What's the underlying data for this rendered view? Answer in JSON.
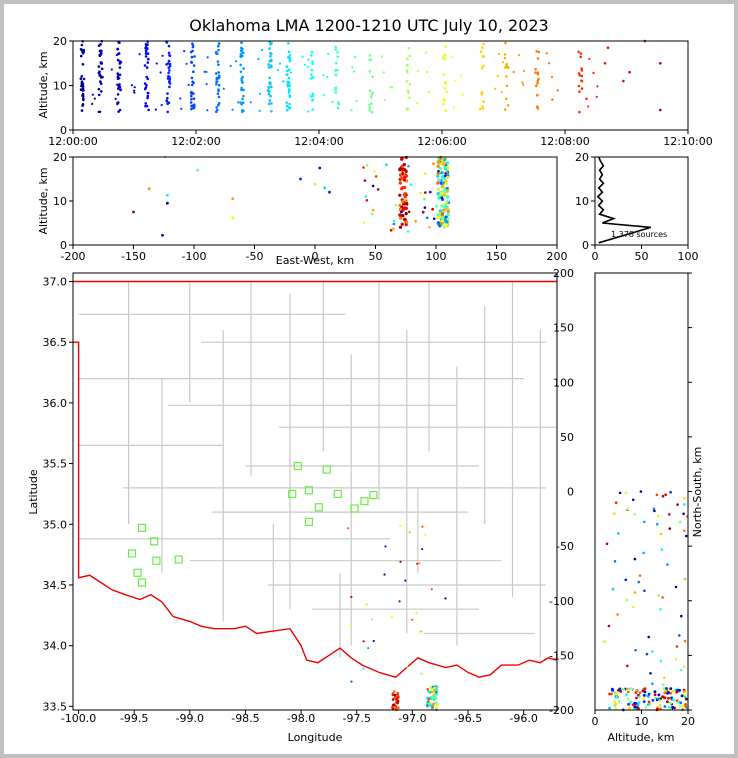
{
  "title": "Oklahoma LMA 1200-1210 UTC July 10, 2023",
  "chart_data": [
    {
      "type": "scatter",
      "panel": "altitude-vs-time",
      "ylabel": "Altitude, km",
      "ylim": [
        0,
        20
      ],
      "y_ticks": [
        "0",
        "10",
        "20"
      ],
      "x_ticks": [
        "12:00:00",
        "12:02:00",
        "12:04:00",
        "12:06:00",
        "12:08:00",
        "12:10:00"
      ],
      "xlim_minutes": [
        0,
        10
      ],
      "color_by": "time",
      "clusters_minutes": [
        0.15,
        0.45,
        0.75,
        1.2,
        1.55,
        1.95,
        2.35,
        2.75,
        3.2,
        3.5,
        3.9,
        4.3,
        4.85,
        5.45,
        6.05,
        6.65,
        7.05,
        7.55,
        8.25
      ]
    },
    {
      "type": "scatter",
      "panel": "altitude-vs-east-west",
      "xlabel": "East-West, km",
      "ylabel": "Altitude, km",
      "xlim": [
        -200,
        200
      ],
      "ylim": [
        0,
        20
      ],
      "x_ticks": [
        "-200",
        "-150",
        "-100",
        "-50",
        "0",
        "50",
        "100",
        "150",
        "200"
      ],
      "y_ticks": [
        "0",
        "10",
        "20"
      ],
      "clusters_x_km": [
        73,
        106
      ]
    },
    {
      "type": "line",
      "panel": "source-histogram",
      "annotation": "1,378 sources",
      "xlim": [
        0,
        100
      ],
      "ylim": [
        0,
        20
      ],
      "x_ticks": [
        "0",
        "50",
        "100"
      ],
      "y_ticks": [
        "0",
        "10",
        "20"
      ],
      "profile": [
        [
          4,
          0.5
        ],
        [
          60,
          4
        ],
        [
          8,
          5
        ],
        [
          20,
          6
        ],
        [
          5,
          7
        ],
        [
          9,
          8
        ],
        [
          4,
          9
        ],
        [
          8,
          10
        ],
        [
          3,
          11
        ],
        [
          8,
          12
        ],
        [
          4,
          13
        ],
        [
          9,
          14
        ],
        [
          5,
          15
        ],
        [
          8,
          16
        ],
        [
          5,
          17
        ],
        [
          9,
          18
        ],
        [
          6,
          19
        ],
        [
          4,
          20
        ]
      ]
    },
    {
      "type": "scatter",
      "panel": "plan-view",
      "xlabel": "Longitude",
      "ylabel": "Latitude",
      "xlim": [
        -100.05,
        -95.7
      ],
      "ylim": [
        33.47,
        37.07
      ],
      "x_ticks": [
        "-100.0",
        "-99.5",
        "-99.0",
        "-98.5",
        "-98.0",
        "-97.5",
        "-97.0",
        "-96.5",
        "-96.0"
      ],
      "y_ticks": [
        "33.5",
        "34.0",
        "34.5",
        "35.0",
        "35.5",
        "36.0",
        "36.5",
        "37.0"
      ],
      "stations": [
        [
          -99.43,
          34.97
        ],
        [
          -99.32,
          34.86
        ],
        [
          -99.52,
          34.76
        ],
        [
          -99.3,
          34.7
        ],
        [
          -99.1,
          34.71
        ],
        [
          -99.47,
          34.6
        ],
        [
          -99.43,
          34.52
        ],
        [
          -98.03,
          35.48
        ],
        [
          -97.77,
          35.45
        ],
        [
          -98.08,
          35.25
        ],
        [
          -97.93,
          35.28
        ],
        [
          -97.67,
          35.25
        ],
        [
          -97.84,
          35.14
        ],
        [
          -97.52,
          35.13
        ],
        [
          -97.43,
          35.19
        ],
        [
          -97.35,
          35.24
        ],
        [
          -97.93,
          35.02
        ]
      ]
    },
    {
      "type": "scatter",
      "panel": "north-south-vs-altitude",
      "xlabel": "Altitude, km",
      "ylabel": "North-South, km",
      "xlim": [
        0,
        20
      ],
      "ylim": [
        -200,
        200
      ],
      "x_ticks": [
        "0",
        "10",
        "20"
      ],
      "y_ticks": [
        "-200",
        "-150",
        "-100",
        "-50",
        "0",
        "50",
        "100",
        "150",
        "200"
      ]
    }
  ]
}
